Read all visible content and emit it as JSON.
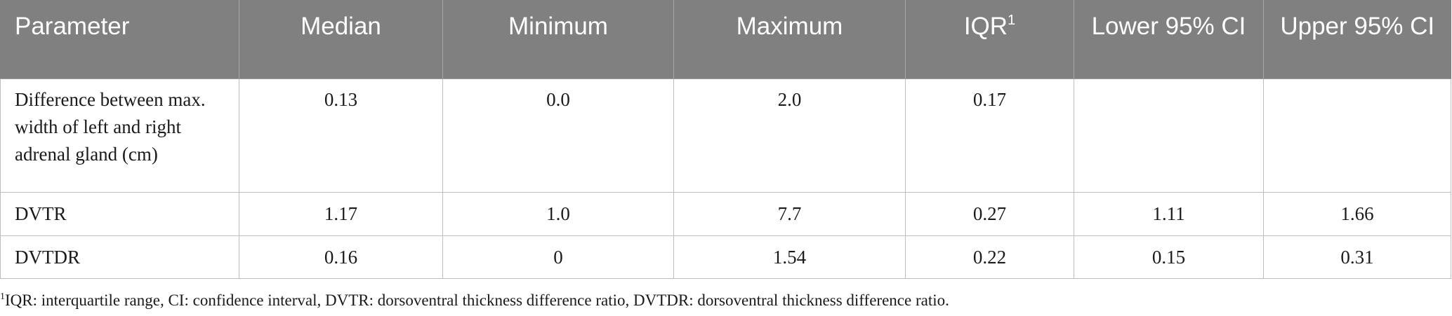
{
  "table": {
    "headers": [
      {
        "label": "Parameter",
        "sup": ""
      },
      {
        "label": "Median",
        "sup": ""
      },
      {
        "label": "Minimum",
        "sup": ""
      },
      {
        "label": "Maximum",
        "sup": ""
      },
      {
        "label": "IQR",
        "sup": "1"
      },
      {
        "label": "Lower 95% CI",
        "sup": ""
      },
      {
        "label": "Upper 95% CI",
        "sup": ""
      }
    ],
    "rows": [
      [
        "Difference between max. width of left and right adrenal gland (cm)",
        "0.13",
        "0.0",
        "2.0",
        "0.17",
        "",
        ""
      ],
      [
        "DVTR",
        "1.17",
        "1.0",
        "7.7",
        "0.27",
        "1.11",
        "1.66"
      ],
      [
        "DVTDR",
        "0.16",
        "0",
        "1.54",
        "0.22",
        "0.15",
        "0.31"
      ]
    ]
  },
  "footnote": {
    "marker": "1",
    "text": "IQR: interquartile range, CI: confidence interval, DVTR: dorsoventral thickness difference ratio, DVTDR: dorsoventral thickness difference ratio."
  },
  "colors": {
    "header_bg": "#808080",
    "header_text": "#ffffff",
    "grid_line": "#bdbdbd"
  }
}
